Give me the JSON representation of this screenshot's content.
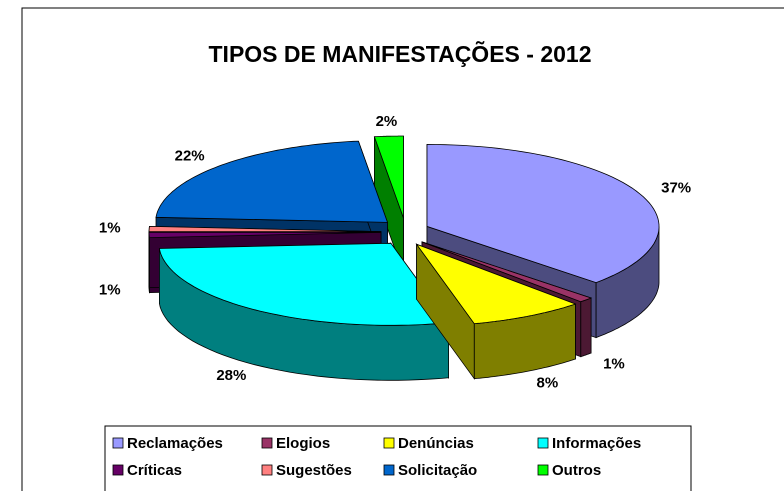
{
  "chart_data": {
    "type": "pie3d",
    "title": "TIPOS DE MANIFESTAÇÕES - 2012",
    "categories": [
      "Reclamações",
      "Elogios",
      "Denúncias",
      "Informações",
      "Críticas",
      "Sugestões",
      "Solicitação",
      "Outros"
    ],
    "values": [
      37,
      1,
      8,
      28,
      1,
      1,
      22,
      2
    ],
    "value_labels": [
      "37%",
      "1%",
      "8%",
      "28%",
      "1%",
      "1%",
      "22%",
      "2%"
    ],
    "colors": [
      "#9999ff",
      "#993366",
      "#ffff00",
      "#00ffff",
      "#660066",
      "#ff8080",
      "#0066cc",
      "#00ff00"
    ],
    "legend": "bottom"
  }
}
